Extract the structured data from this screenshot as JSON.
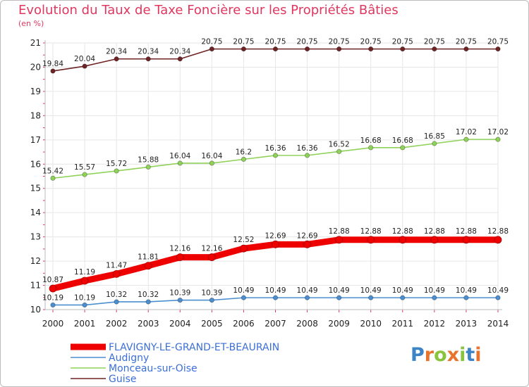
{
  "title": "Evolution du Taux de Taxe Foncière sur les Propriétés Bâties",
  "unit": "(en %)",
  "colors": {
    "title": "#e0375f",
    "axis": "#bbbbbb",
    "grid": "#e6e6e6",
    "tick_mark": "#e0375f",
    "legend_text": "#3b6fd8"
  },
  "logo": {
    "text": "Proxiti",
    "letter_colors": [
      "#3c84c6",
      "#e8732c",
      "#8ac43f",
      "#e8732c",
      "#8ac43f",
      "#3c84c6",
      "#e8732c"
    ]
  },
  "chart_data": {
    "type": "line",
    "title": "Evolution du Taux de Taxe Foncière sur les Propriétés Bâties",
    "ylabel": "(en %)",
    "xlabel": "",
    "ylim": [
      10,
      21
    ],
    "yticks": [
      10,
      11,
      12,
      13,
      14,
      15,
      16,
      17,
      18,
      19,
      20,
      21
    ],
    "x": [
      "2000",
      "2001",
      "2002",
      "2003",
      "2004",
      "2005",
      "2006",
      "2007",
      "2008",
      "2009",
      "2010",
      "2011",
      "2012",
      "2013",
      "2014"
    ],
    "grid": true,
    "legend_position": "bottom-left",
    "series": [
      {
        "name": "FLAVIGNY-LE-GRAND-ET-BEAURAIN",
        "color": "#ee0000",
        "emphasis": true,
        "values": [
          10.87,
          11.19,
          11.47,
          11.81,
          12.16,
          12.16,
          12.52,
          12.69,
          12.69,
          12.88,
          12.88,
          12.88,
          12.88,
          12.88,
          12.88
        ],
        "labels": [
          "10.87",
          "11.19",
          "11.47",
          "11.81",
          "12.16",
          "12.16",
          "12.52",
          "12.69",
          "12.69",
          "12.88",
          "12.88",
          "12.88",
          "12.88",
          "12.88",
          "12.88"
        ]
      },
      {
        "name": "Audigny",
        "color": "#4b8fd0",
        "emphasis": false,
        "values": [
          10.19,
          10.19,
          10.32,
          10.32,
          10.39,
          10.39,
          10.49,
          10.49,
          10.49,
          10.49,
          10.49,
          10.49,
          10.49,
          10.49,
          10.49
        ],
        "labels": [
          "10.19",
          "10.19",
          "10.32",
          "10.32",
          "10.39",
          "10.39",
          "10.49",
          "10.49",
          "10.49",
          "10.49",
          "10.49",
          "10.49",
          "10.49",
          "10.49",
          "10.49"
        ]
      },
      {
        "name": "Monceau-sur-Oise",
        "color": "#8fd25a",
        "emphasis": false,
        "values": [
          15.42,
          15.57,
          15.72,
          15.88,
          16.04,
          16.04,
          16.2,
          16.36,
          16.36,
          16.52,
          16.68,
          16.68,
          16.85,
          17.02,
          17.02
        ],
        "labels": [
          "15.42",
          "15.57",
          "15.72",
          "15.88",
          "16.04",
          "16.04",
          "16.2",
          "16.36",
          "16.36",
          "16.52",
          "16.68",
          "16.68",
          "16.85",
          "17.02",
          "17.02"
        ]
      },
      {
        "name": "Guise",
        "color": "#6e2424",
        "emphasis": false,
        "values": [
          19.84,
          20.04,
          20.34,
          20.34,
          20.34,
          20.75,
          20.75,
          20.75,
          20.75,
          20.75,
          20.75,
          20.75,
          20.75,
          20.75,
          20.75
        ],
        "labels": [
          "19.84",
          "20.04",
          "20.34",
          "20.34",
          "20.34",
          "20.75",
          "20.75",
          "20.75",
          "20.75",
          "20.75",
          "20.75",
          "20.75",
          "20.75",
          "20.75",
          "20.75"
        ]
      }
    ]
  }
}
